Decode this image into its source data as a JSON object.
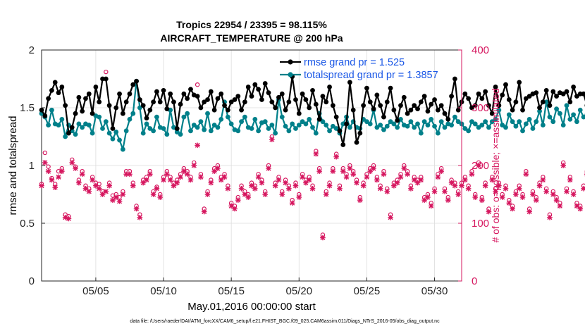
{
  "colors": {
    "rmse": "#000000",
    "spread": "#00808a",
    "obs": "#d6175f",
    "legend_text": "#1a57e6",
    "grid": "#dcdcdc"
  },
  "chart_data": {
    "type": "line",
    "title": "Tropics 22954 / 23395 = 98.115%",
    "subtitle": "AIRCRAFT_TEMPERATURE @ 200 hPa",
    "xlabel": "May.01,2016 00:00:00 start",
    "ylabel": "rmse and totalspread",
    "ylabel_right": "# of obs: o=possible; ×=assimilated",
    "xlim": [
      1,
      32
    ],
    "ylim": [
      0,
      2
    ],
    "ylim_right": [
      0,
      400
    ],
    "x_tick_values": [
      5,
      10,
      15,
      20,
      25,
      30
    ],
    "x_tick_labels": [
      "05/05",
      "05/10",
      "05/15",
      "05/20",
      "05/25",
      "05/30"
    ],
    "y_tick_labels": [
      "0",
      "0.5",
      "1",
      "1.5",
      "2"
    ],
    "y_tick_labels_right": [
      "0",
      "100",
      "200",
      "300",
      "400"
    ],
    "legend_position": "top-right",
    "footer": "data file: /Users/raeder/DAI/ATM_forcXX/CAM6_setup/f.e21.FHIST_BGC.f09_025.CAM6assim.011/Diags_NTrS_2016-05/obs_diag_output.nc",
    "series": [
      {
        "name": "rmse grand pr = 1.525",
        "axis": "left",
        "x_start": 1.0,
        "x_step": 0.25,
        "values": [
          1.48,
          1.43,
          1.58,
          1.65,
          1.72,
          1.63,
          1.68,
          1.52,
          1.28,
          1.33,
          1.45,
          1.59,
          1.47,
          1.58,
          1.62,
          1.45,
          1.68,
          1.55,
          1.75,
          1.75,
          1.52,
          1.32,
          1.5,
          1.62,
          1.45,
          1.55,
          1.62,
          1.7,
          1.73,
          1.57,
          1.52,
          1.41,
          1.48,
          1.55,
          1.64,
          1.55,
          1.65,
          1.49,
          1.62,
          1.55,
          1.32,
          1.53,
          1.62,
          1.58,
          1.66,
          1.61,
          1.6,
          1.5,
          1.55,
          1.57,
          1.64,
          1.48,
          1.58,
          1.62,
          1.52,
          1.48,
          1.55,
          1.57,
          1.6,
          1.48,
          1.55,
          1.68,
          1.6,
          1.7,
          1.66,
          1.57,
          1.71,
          1.63,
          1.55,
          1.5,
          1.59,
          1.62,
          1.48,
          1.55,
          1.77,
          1.57,
          1.45,
          1.62,
          1.57,
          1.5,
          1.65,
          1.53,
          1.4,
          1.6,
          1.55,
          1.68,
          1.52,
          1.42,
          1.3,
          1.18,
          1.36,
          1.72,
          1.48,
          1.2,
          1.28,
          1.52,
          1.67,
          1.55,
          1.49,
          1.61,
          1.52,
          1.42,
          1.55,
          1.67,
          1.48,
          1.39,
          1.52,
          1.59,
          1.45,
          1.48,
          1.52,
          1.49,
          1.55,
          1.6,
          1.47,
          1.53,
          1.57,
          1.48,
          1.52,
          1.45,
          1.4,
          1.6,
          1.75,
          1.48,
          1.55,
          1.62,
          1.58,
          1.5,
          1.52,
          1.62,
          1.58,
          1.64,
          1.52,
          1.45,
          1.68,
          1.52,
          1.61,
          1.7,
          1.57,
          1.48,
          1.55,
          1.72,
          1.48,
          1.58,
          1.6,
          1.62,
          1.63,
          1.5,
          1.55,
          1.65,
          1.52,
          1.64,
          1.6,
          1.63,
          1.62,
          1.64,
          1.55,
          1.68,
          1.6,
          1.62,
          1.62,
          1.52,
          1.48,
          1.45,
          1.51
        ]
      },
      {
        "name": "totalspread grand pr = 1.3857",
        "axis": "left",
        "x_start": 1.0,
        "x_step": 0.25,
        "values": [
          1.45,
          1.42,
          1.35,
          1.48,
          1.36,
          1.35,
          1.4,
          1.25,
          1.35,
          1.3,
          1.27,
          1.36,
          1.33,
          1.36,
          1.35,
          1.28,
          1.43,
          1.42,
          1.32,
          1.38,
          1.28,
          1.23,
          1.29,
          1.22,
          1.14,
          1.3,
          1.4,
          1.45,
          1.73,
          1.5,
          1.28,
          1.36,
          1.32,
          1.3,
          1.42,
          1.33,
          1.32,
          1.27,
          1.48,
          1.33,
          1.29,
          1.27,
          1.42,
          1.45,
          1.3,
          1.35,
          1.33,
          1.38,
          1.31,
          1.45,
          1.3,
          1.35,
          1.33,
          1.4,
          1.55,
          1.42,
          1.36,
          1.31,
          1.3,
          1.38,
          1.42,
          1.33,
          1.32,
          1.4,
          1.3,
          1.37,
          1.38,
          1.32,
          1.35,
          1.28,
          1.57,
          1.42,
          1.34,
          1.3,
          1.36,
          1.32,
          1.35,
          1.38,
          1.36,
          1.4,
          1.33,
          1.28,
          1.45,
          1.38,
          1.35,
          1.3,
          1.34,
          1.32,
          1.28,
          1.36,
          1.42,
          1.33,
          1.38,
          1.33,
          1.32,
          1.4,
          1.38,
          1.36,
          1.48,
          1.33,
          1.35,
          1.31,
          1.34,
          1.38,
          1.36,
          1.33,
          1.4,
          1.35,
          1.34,
          1.38,
          1.33,
          1.36,
          1.28,
          1.38,
          1.35,
          1.4,
          1.34,
          1.28,
          1.38,
          1.33,
          1.36,
          1.35,
          1.42,
          1.38,
          1.36,
          1.32,
          1.3,
          1.38,
          1.36,
          1.33,
          1.35,
          1.38,
          1.33,
          1.38,
          1.4,
          1.48,
          1.35,
          1.33,
          1.44,
          1.38,
          1.34,
          1.38,
          1.3,
          1.36,
          1.4,
          1.32,
          1.38,
          1.47,
          1.35,
          1.55,
          1.42,
          1.38,
          1.49,
          1.45,
          1.35,
          1.52,
          1.4,
          1.44,
          1.38,
          1.48,
          1.42,
          1.44,
          1.36,
          1.47
        ]
      },
      {
        "name": "obs assimilated",
        "axis": "right",
        "marker": "x",
        "x_start": 1.0,
        "x_step": 0.25,
        "values": [
          165,
          205,
          190,
          175,
          162,
          180,
          190,
          110,
          108,
          205,
          195,
          170,
          185,
          160,
          155,
          175,
          165,
          160,
          150,
          155,
          165,
          140,
          145,
          138,
          150,
          185,
          185,
          165,
          125,
          110,
          170,
          175,
          185,
          150,
          160,
          145,
          175,
          185,
          175,
          165,
          170,
          180,
          190,
          185,
          175,
          200,
          235,
          180,
          120,
          150,
          170,
          190,
          195,
          175,
          180,
          160,
          130,
          125,
          140,
          160,
          150,
          145,
          165,
          160,
          180,
          170,
          150,
          195,
          245,
          165,
          175,
          150,
          170,
          160,
          135,
          165,
          145,
          180,
          170,
          175,
          160,
          220,
          190,
          75,
          150,
          165,
          190,
          215,
          160,
          190,
          180,
          195,
          185,
          170,
          140,
          165,
          180,
          190,
          195,
          175,
          160,
          185,
          155,
          110,
          165,
          170,
          180,
          195,
          185,
          160,
          175,
          170,
          175,
          140,
          145,
          130,
          155,
          180,
          190,
          155,
          140,
          170,
          165,
          150,
          165,
          175,
          160,
          185,
          145,
          200,
          140,
          165,
          120,
          175,
          155,
          165,
          145,
          160,
          135,
          125,
          150,
          160,
          145,
          185,
          120,
          150,
          140,
          165,
          175,
          155,
          110,
          150,
          140,
          130,
          200,
          155,
          175,
          150,
          130,
          125,
          160,
          185,
          215,
          210
        ]
      },
      {
        "name": "obs possible",
        "axis": "right",
        "marker": "o",
        "x_start": 1.0,
        "x_step": 0.25,
        "values": [
          168,
          222,
          198,
          178,
          168,
          190,
          195,
          115,
          112,
          210,
          198,
          175,
          190,
          165,
          160,
          180,
          170,
          168,
          155,
          362,
          170,
          148,
          150,
          145,
          155,
          190,
          190,
          170,
          130,
          115,
          175,
          180,
          190,
          155,
          163,
          150,
          180,
          190,
          180,
          170,
          175,
          185,
          195,
          190,
          180,
          205,
          340,
          185,
          125,
          155,
          175,
          195,
          200,
          180,
          185,
          165,
          135,
          130,
          145,
          165,
          155,
          150,
          170,
          165,
          185,
          175,
          155,
          200,
          250,
          170,
          180,
          155,
          175,
          165,
          140,
          170,
          150,
          185,
          175,
          180,
          165,
          225,
          195,
          80,
          155,
          170,
          195,
          220,
          165,
          195,
          185,
          200,
          190,
          175,
          145,
          170,
          185,
          195,
          200,
          180,
          165,
          190,
          160,
          115,
          170,
          175,
          185,
          200,
          190,
          165,
          180,
          175,
          180,
          145,
          150,
          135,
          160,
          185,
          195,
          160,
          145,
          175,
          170,
          155,
          170,
          180,
          165,
          190,
          150,
          205,
          145,
          170,
          125,
          180,
          160,
          170,
          150,
          165,
          140,
          130,
          155,
          165,
          150,
          190,
          125,
          155,
          145,
          170,
          180,
          160,
          115,
          155,
          145,
          135,
          205,
          160,
          180,
          155,
          135,
          130,
          165,
          190,
          220,
          215
        ]
      }
    ]
  }
}
